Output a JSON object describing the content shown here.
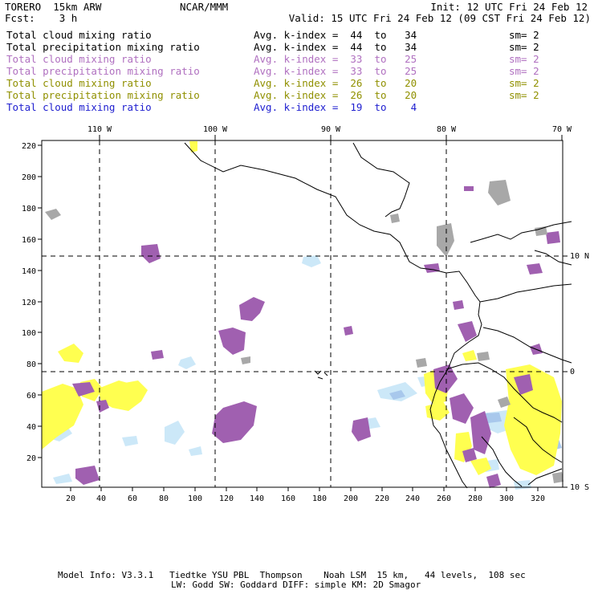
{
  "header": {
    "model": "TORERO  15km ARW",
    "org": "NCAR/MMM",
    "init": "Init: 12 UTC Fri 24 Feb 12",
    "fcst": "Fcst:    3 h",
    "valid": "Valid: 15 UTC Fri 24 Feb 12 (09 CST Fri 24 Feb 12)"
  },
  "legend": [
    {
      "name": "Total cloud mixing ratio",
      "kindex": "Avg. k-index =  44  to   34",
      "sm": "sm= 2",
      "color": "#000000"
    },
    {
      "name": "Total precipitation mixing ratio",
      "kindex": "Avg. k-index =  44  to   34",
      "sm": "sm= 2",
      "color": "#000000"
    },
    {
      "name": "Total cloud mixing ratio",
      "kindex": "Avg. k-index =  33  to   25",
      "sm": "sm= 2",
      "color": "#b070c0"
    },
    {
      "name": "Total precipitation mixing ratio",
      "kindex": "Avg. k-index =  33  to   25",
      "sm": "sm= 2",
      "color": "#b070c0"
    },
    {
      "name": "Total cloud mixing ratio",
      "kindex": "Avg. k-index =  26  to   20",
      "sm": "sm= 2",
      "color": "#909000"
    },
    {
      "name": "Total precipitation mixing ratio",
      "kindex": "Avg. k-index =  26  to   20",
      "sm": "sm= 2",
      "color": "#909000"
    },
    {
      "name": "Total cloud mixing ratio",
      "kindex": "Avg. k-index =  19  to    4",
      "sm": "",
      "color": "#2020d0"
    }
  ],
  "map": {
    "lon_labels": [
      "110 W",
      "100 W",
      "90 W",
      "80 W",
      "70 W"
    ],
    "lat_labels": [
      "10 N",
      "0",
      "10 S"
    ],
    "x_ticks": [
      "20",
      "40",
      "60",
      "80",
      "100",
      "120",
      "140",
      "160",
      "180",
      "200",
      "220",
      "240",
      "260",
      "280",
      "300",
      "320"
    ],
    "y_ticks": [
      "220",
      "200",
      "180",
      "160",
      "140",
      "120",
      "100",
      "80",
      "60",
      "40",
      "20"
    ],
    "colors": {
      "purple": "#a060b0",
      "yellow": "#ffff50",
      "gray": "#a8a8a8",
      "lightblue": "#cce8f8",
      "blue": "#a8c8ec",
      "coast": "#000000"
    }
  },
  "footer": {
    "line1": "Model Info: V3.3.1   Tiedtke YSU PBL  Thompson    Noah LSM  15 km,   44 levels,  108 sec",
    "line2": "LW: Godd SW: Goddard DIFF: simple KM: 2D Smagor"
  }
}
